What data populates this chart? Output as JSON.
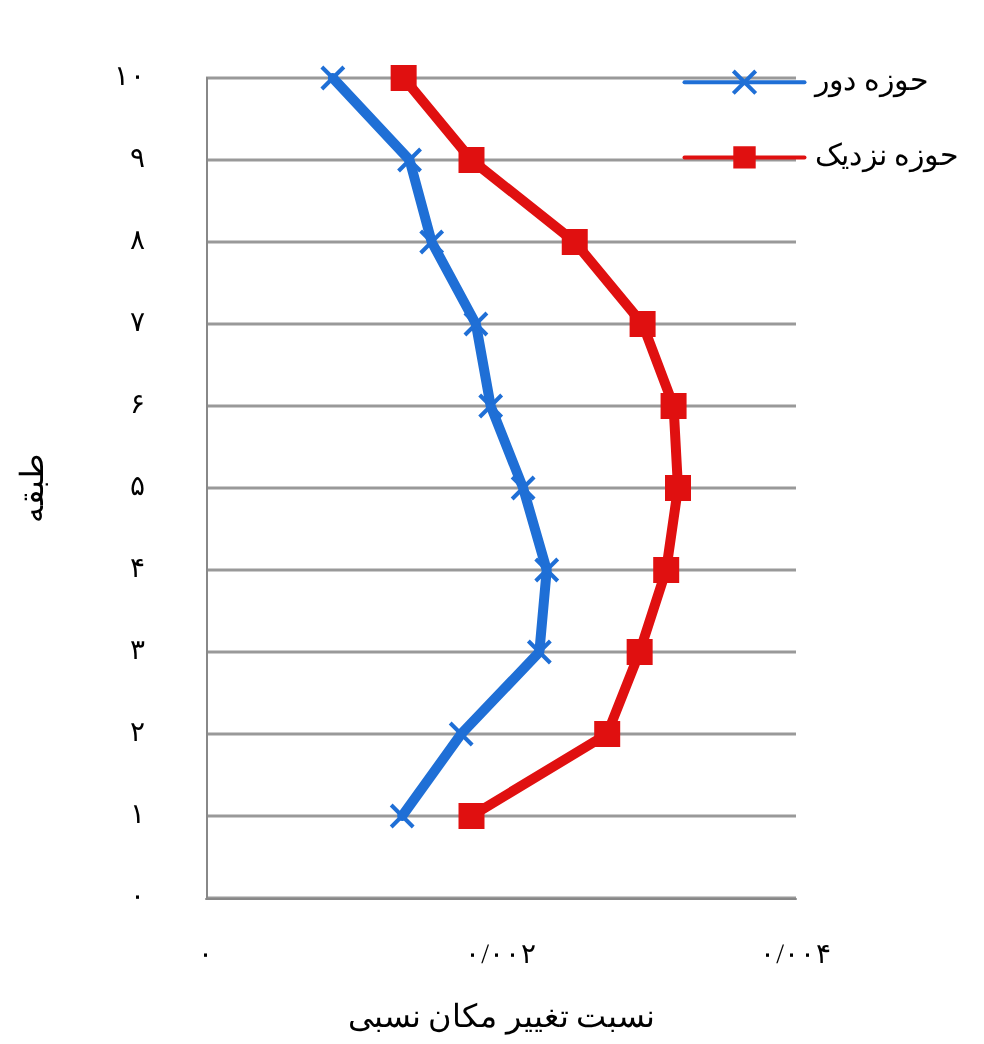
{
  "chart_data": {
    "type": "line",
    "xlabel": "نسبت تغییر مکان نسبی",
    "ylabel": "طبقه",
    "xlim": [
      0,
      0.004
    ],
    "xticks": [
      {
        "value": 0,
        "label": "۰"
      },
      {
        "value": 0.002,
        "label": "۰/۰۰۲"
      },
      {
        "value": 0.004,
        "label": "۰/۰۰۴"
      }
    ],
    "ylim": [
      0,
      10
    ],
    "yticks": [
      {
        "value": 0,
        "label": "۰"
      },
      {
        "value": 1,
        "label": "۱"
      },
      {
        "value": 2,
        "label": "۲"
      },
      {
        "value": 3,
        "label": "۳"
      },
      {
        "value": 4,
        "label": "۴"
      },
      {
        "value": 5,
        "label": "۵"
      },
      {
        "value": 6,
        "label": "۶"
      },
      {
        "value": 7,
        "label": "۷"
      },
      {
        "value": 8,
        "label": "۸"
      },
      {
        "value": 9,
        "label": "۹"
      },
      {
        "value": 10,
        "label": "۱۰"
      }
    ],
    "grid": "y",
    "legend": "top right",
    "line_style": "solid",
    "series": [
      {
        "name": "حوزه دور",
        "color": "#1f6fd6",
        "marker": "cross",
        "x": [
          0.00133,
          0.00173,
          0.00226,
          0.00231,
          0.00215,
          0.00193,
          0.00183,
          0.00153,
          0.00138,
          0.00086
        ],
        "values": [
          1,
          2,
          3,
          4,
          5,
          6,
          7,
          8,
          9,
          10
        ]
      },
      {
        "name": "حوزه نزدیک",
        "color": "#e01010",
        "marker": "square",
        "x": [
          0.0018,
          0.00272,
          0.00294,
          0.00312,
          0.0032,
          0.00317,
          0.00296,
          0.0025,
          0.0018,
          0.00134
        ],
        "values": [
          1,
          2,
          3,
          4,
          5,
          6,
          7,
          8,
          9,
          10
        ]
      }
    ]
  }
}
